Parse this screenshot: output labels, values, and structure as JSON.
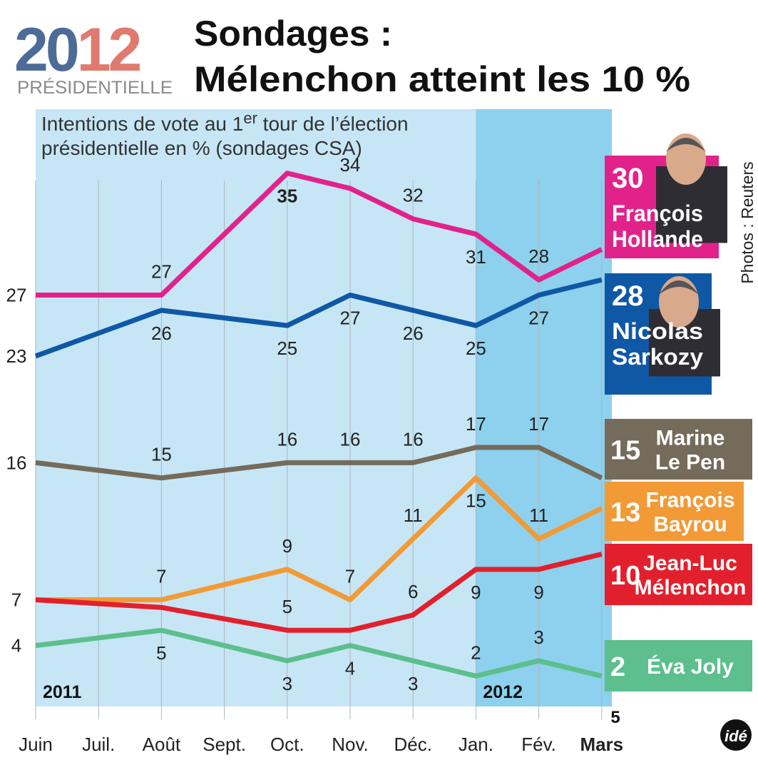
{
  "chart_data": {
    "type": "line",
    "logo": {
      "year": [
        "20",
        "12"
      ],
      "label": "PRÉSIDENTIELLE"
    },
    "title": [
      "Sondages :",
      "Mélenchon atteint les 10 %"
    ],
    "subtitle": {
      "line1": [
        "Intentions de vote au 1",
        "er",
        " tour de l’élection"
      ],
      "line2": "présidentielle en % (sondages CSA)"
    },
    "categories": [
      "Juin",
      "Juil.",
      "Août",
      "Sept.",
      "Oct.",
      "Nov.",
      "Déc.",
      "Jan.",
      "Fév.",
      "Mars"
    ],
    "x": [
      "Juin",
      "Août",
      "Oct.",
      "Nov.",
      "Déc.",
      "Jan.",
      "Fév.",
      "Mars"
    ],
    "last_day": "5",
    "periods": [
      "2011",
      "2012"
    ],
    "highlight_from": "Jan.",
    "ylim": [
      0,
      39.2
    ],
    "series": [
      {
        "name": [
          "François",
          "Hollande"
        ],
        "color": "#e2228b",
        "values": [
          27,
          27,
          35,
          34,
          32,
          31,
          28,
          30
        ]
      },
      {
        "name": [
          "Nicolas",
          "Sarkozy"
        ],
        "color": "#0f58a5",
        "values": [
          23,
          26,
          25,
          27,
          26,
          25,
          27,
          28
        ]
      },
      {
        "name": [
          "Marine",
          "Le Pen"
        ],
        "color": "#746b5b",
        "values": [
          16,
          15,
          16,
          16,
          16,
          17,
          17,
          15
        ]
      },
      {
        "name": [
          "François",
          "Bayrou"
        ],
        "color": "#f29a35",
        "values": [
          7,
          7,
          9,
          7,
          11,
          15,
          11,
          13
        ]
      },
      {
        "name": [
          "Jean-Luc",
          "Mélenchon"
        ],
        "color": "#e2202d",
        "values": [
          7,
          6.5,
          5,
          5,
          6,
          9,
          9,
          10
        ]
      },
      {
        "name": [
          "Éva Joly"
        ],
        "color": "#5cbf8d",
        "values": [
          4,
          5,
          3,
          4,
          3,
          2,
          3,
          2
        ]
      }
    ],
    "credit": "Photos : Reuters",
    "brand": "idé"
  }
}
